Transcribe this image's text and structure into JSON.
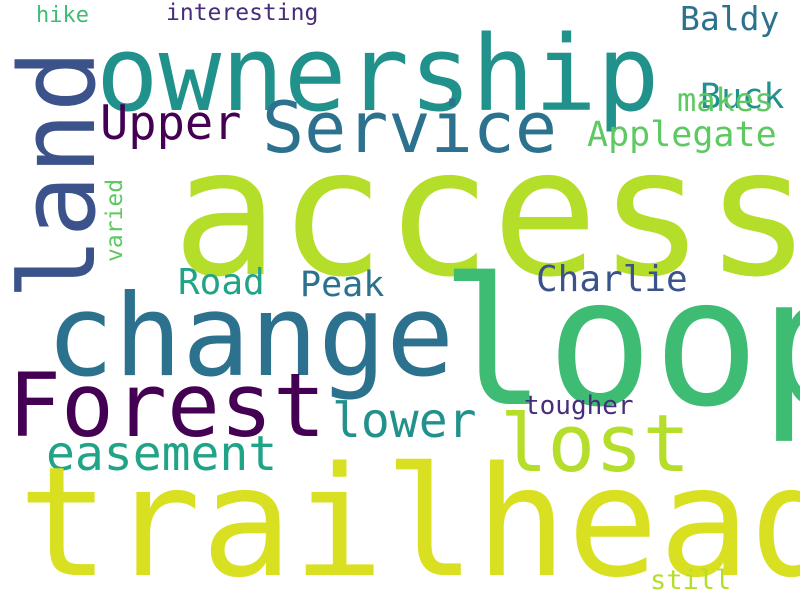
{
  "words": {
    "trailhead": "trailhead",
    "access": "access",
    "ownership": "ownership",
    "loop": "loop",
    "change": "change",
    "land": "land",
    "forest": "Forest",
    "service": "Service",
    "lost": "lost",
    "upper": "Upper",
    "easement": "easement",
    "lower": "lower",
    "applegate": "Applegate",
    "charlie": "Charlie",
    "road": "Road",
    "peak": "Peak",
    "baldy": "Baldy",
    "buck": "Buck",
    "makes": "makes",
    "tougher": "tougher",
    "varied": "varied",
    "hike": "hike",
    "interesting": "interesting",
    "still": "still"
  },
  "colors": {
    "yellow": "#d9e021",
    "lime": "#b5de2b",
    "green": "#3fbc73",
    "teal_green": "#20a386",
    "teal": "#21918c",
    "blue_teal": "#2c728e",
    "slate": "#3b528b",
    "indigo": "#472d7b",
    "purple": "#440154",
    "light_green": "#5ec962"
  }
}
